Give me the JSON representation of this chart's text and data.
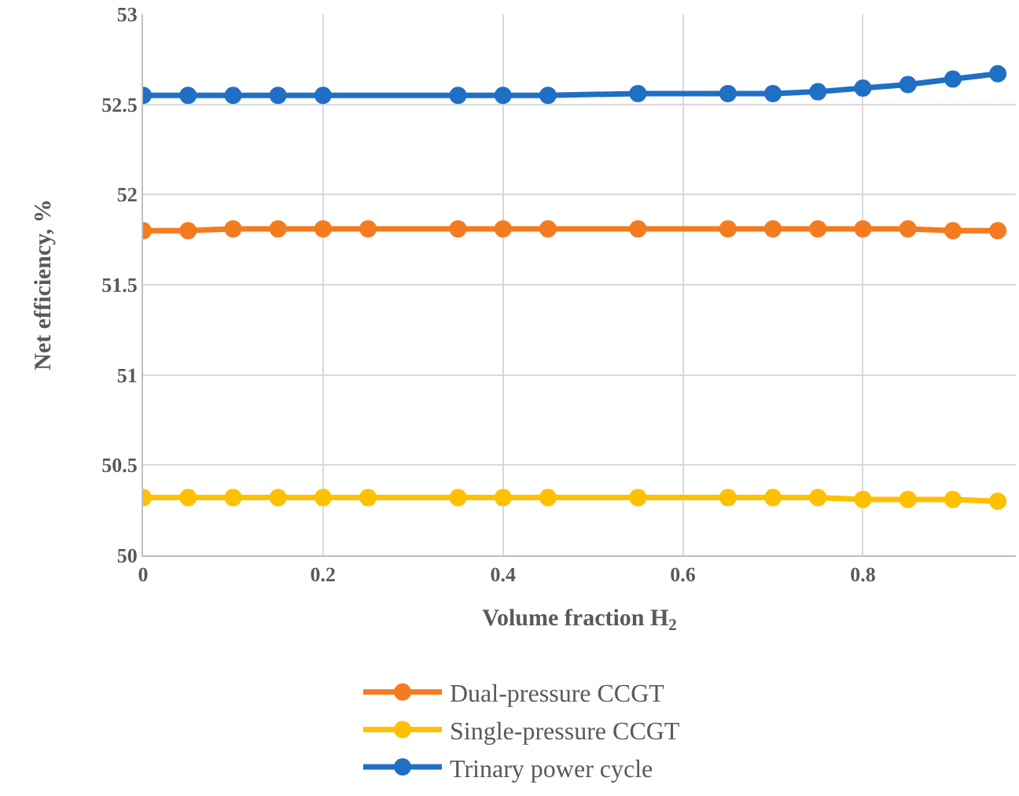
{
  "chart_data": {
    "type": "line",
    "xlabel": "Volume fraction H$_{2}$",
    "ylabel": "Net efficiency, %",
    "x": [
      0,
      0.05,
      0.1,
      0.15,
      0.2,
      0.25,
      0.35,
      0.4,
      0.45,
      0.55,
      0.65,
      0.7,
      0.75,
      0.8,
      0.85,
      0.9,
      0.95
    ],
    "series": [
      {
        "name": "Dual-pressure CCGT",
        "color": "#f47b20",
        "values": [
          51.8,
          51.8,
          51.81,
          51.81,
          51.81,
          51.81,
          51.81,
          51.81,
          51.81,
          51.81,
          51.81,
          51.81,
          51.81,
          51.81,
          51.81,
          51.8,
          51.8
        ]
      },
      {
        "name": "Single-pressure CCGT",
        "color": "#ffc000",
        "values": [
          50.32,
          50.32,
          50.32,
          50.32,
          50.32,
          50.32,
          50.32,
          50.32,
          50.32,
          50.32,
          50.32,
          50.32,
          50.32,
          50.31,
          50.31,
          50.31,
          50.3
        ]
      },
      {
        "name": "Trinary power cycle",
        "color": "#1f6fc5",
        "x": [
          0,
          0.05,
          0.1,
          0.15,
          0.2,
          0.35,
          0.4,
          0.45,
          0.55,
          0.65,
          0.7,
          0.75,
          0.8,
          0.85,
          0.9,
          0.95
        ],
        "values": [
          52.55,
          52.55,
          52.55,
          52.55,
          52.55,
          52.55,
          52.55,
          52.55,
          52.56,
          52.56,
          52.56,
          52.57,
          52.59,
          52.61,
          52.64,
          52.67
        ]
      }
    ],
    "xlim": [
      0,
      0.97
    ],
    "xticks": [
      0,
      0.2,
      0.4,
      0.6,
      0.8
    ],
    "ylim": [
      50,
      53
    ],
    "yticks": [
      50,
      50.5,
      51,
      51.5,
      52,
      52.5,
      53
    ],
    "grid": true,
    "legend": "bottom",
    "marker": "circle",
    "line_style": "solid"
  }
}
